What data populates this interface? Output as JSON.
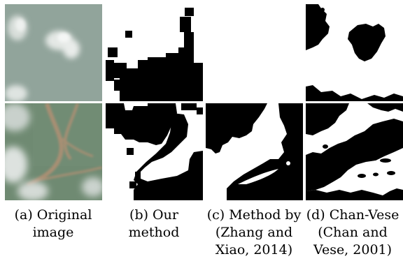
{
  "figure": {
    "captions": [
      {
        "line1": "(a) Original",
        "line2": "image",
        "line3": ""
      },
      {
        "line1": "(b) Our",
        "line2": "method",
        "line3": ""
      },
      {
        "line1": "(c) Method by",
        "line2": "(Zhang and",
        "line3": "Xiao, 2014)"
      },
      {
        "line1": "(d) Chan-Vese",
        "line2": "(Chan and",
        "line3": "Vese, 2001)"
      }
    ]
  },
  "colors": {
    "mask_black": "#000000",
    "mask_white": "#ffffff",
    "sky_haze": "#8a9e94",
    "cloud": "#e9ecea",
    "ground": "#6f8a6f",
    "river": "#a78f74"
  }
}
